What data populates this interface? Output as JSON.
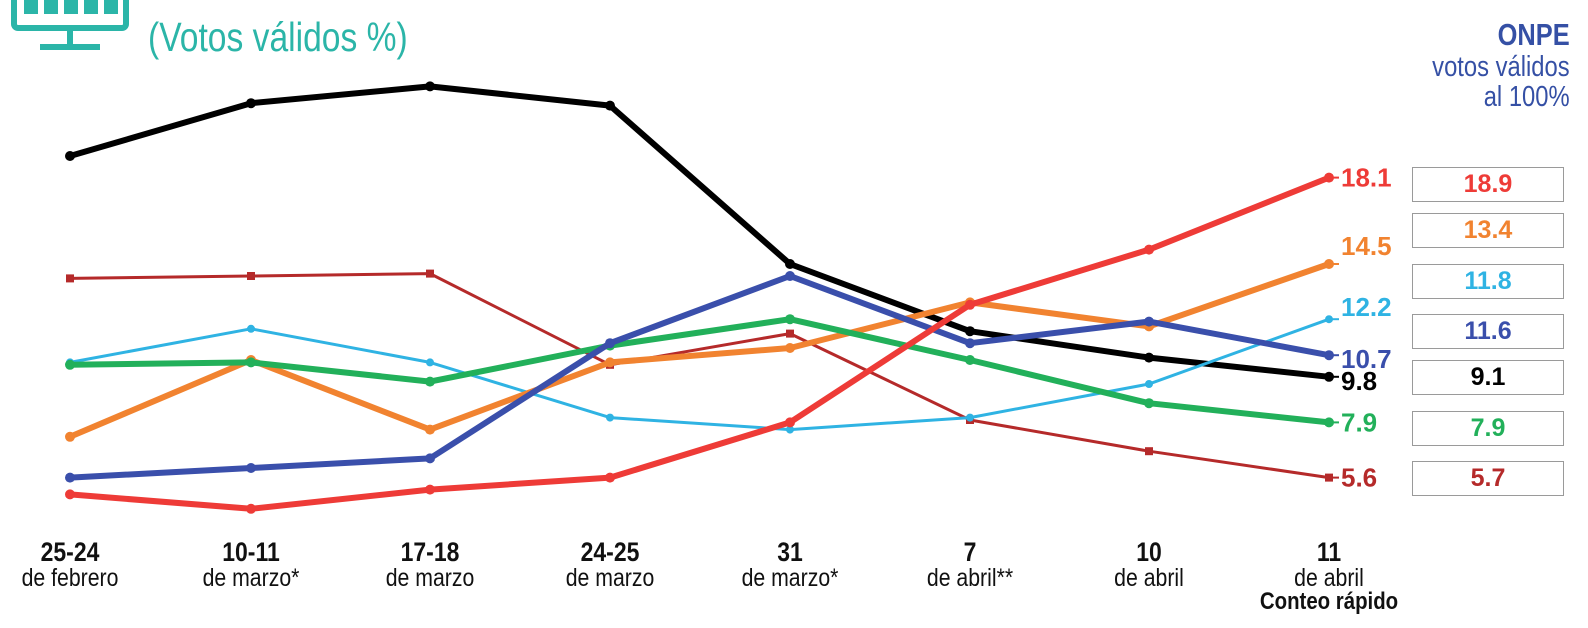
{
  "subtitle": "(Votos válidos %)",
  "onpe": {
    "title": "ONPE",
    "line1": "votos válidos",
    "line2": "al 100%"
  },
  "chart_data": {
    "type": "line",
    "title": "",
    "subtitle": "(Votos válidos %)",
    "categories": [
      {
        "date": "25-24",
        "month": "de febrero",
        "note": ""
      },
      {
        "date": "10-11",
        "month": "de marzo*",
        "note": ""
      },
      {
        "date": "17-18",
        "month": "de marzo",
        "note": ""
      },
      {
        "date": "24-25",
        "month": "de marzo",
        "note": ""
      },
      {
        "date": "31",
        "month": "de marzo*",
        "note": ""
      },
      {
        "date": "7",
        "month": "de abril**",
        "note": ""
      },
      {
        "date": "10",
        "month": "de abril",
        "note": ""
      },
      {
        "date": "11",
        "month": "de abril",
        "note": "Conteo rápido"
      }
    ],
    "ylim": [
      3,
      23
    ],
    "grid": false,
    "legend": "none",
    "series": [
      {
        "color": "#000000",
        "width": 6,
        "marker": "circle",
        "values": [
          19.0,
          21.2,
          21.9,
          21.1,
          14.5,
          11.7,
          10.6,
          9.8
        ],
        "end_label": "9.8",
        "onpe": "9.1"
      },
      {
        "color": "#b52a2a",
        "width": 3,
        "marker": "square",
        "values": [
          13.9,
          14.0,
          14.1,
          10.3,
          11.6,
          8.0,
          6.7,
          5.6
        ],
        "end_label": "5.6",
        "onpe": "5.7"
      },
      {
        "color": "#2fb3e3",
        "width": 3,
        "marker": "circle",
        "values": [
          10.4,
          11.8,
          10.4,
          8.1,
          7.6,
          8.1,
          9.5,
          12.2
        ],
        "end_label": "12.2",
        "onpe": "11.8"
      },
      {
        "color": "#f18330",
        "width": 6,
        "marker": "circle",
        "values": [
          7.3,
          10.5,
          7.6,
          10.4,
          11.0,
          12.9,
          11.9,
          14.5
        ],
        "end_label": "14.5",
        "onpe": "13.4"
      },
      {
        "color": "#22b05a",
        "width": 6,
        "marker": "circle",
        "values": [
          10.3,
          10.4,
          9.6,
          11.1,
          12.2,
          10.5,
          8.7,
          7.9
        ],
        "end_label": "7.9",
        "onpe": "7.9"
      },
      {
        "color": "#3a4fab",
        "width": 6,
        "marker": "circle",
        "values": [
          5.6,
          6.0,
          6.4,
          11.2,
          14.0,
          11.2,
          12.1,
          10.7
        ],
        "end_label": "10.7",
        "onpe": "11.6"
      },
      {
        "color": "#ee3b37",
        "width": 6,
        "marker": "circle",
        "values": [
          4.9,
          4.3,
          5.1,
          5.6,
          7.9,
          12.8,
          15.1,
          18.1
        ],
        "end_label": "18.1",
        "onpe": "18.9"
      }
    ],
    "onpe_column": [
      "18.9",
      "13.4",
      "11.8",
      "11.6",
      "9.1",
      "7.9",
      "5.7"
    ],
    "onpe_colors": [
      "#ee3b37",
      "#f18330",
      "#2fb3e3",
      "#3a4fab",
      "#000000",
      "#22b05a",
      "#b52a2a"
    ]
  }
}
